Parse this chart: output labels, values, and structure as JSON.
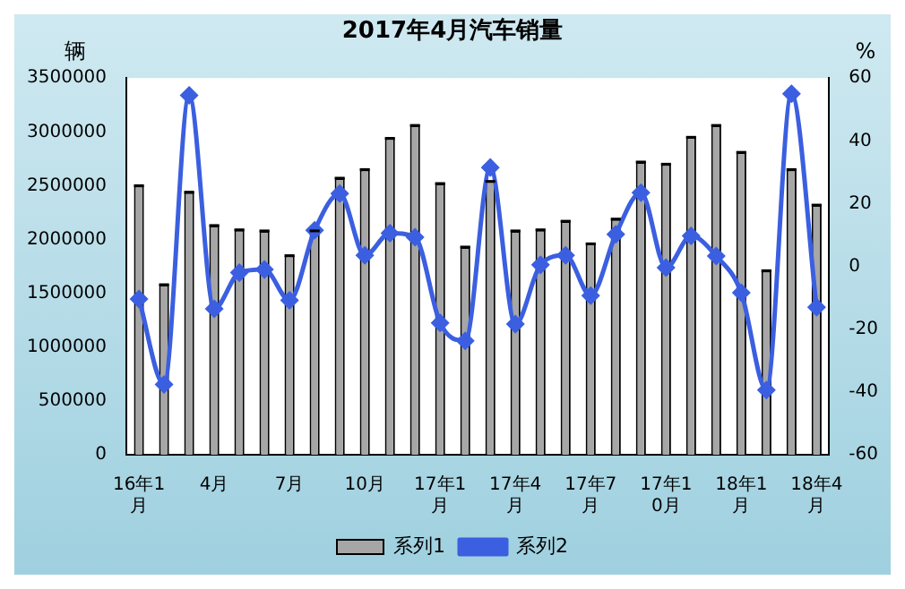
{
  "chart_data": {
    "type": "bar",
    "title": "2017年4月汽车销量",
    "ylabel": "辆",
    "y2label": "%",
    "categories": [
      "16年1月",
      null,
      null,
      "4月",
      null,
      null,
      "7月",
      null,
      null,
      "10月",
      null,
      null,
      "17年1月",
      null,
      null,
      "17年4月",
      null,
      null,
      "17年7月",
      null,
      null,
      "17年10月",
      null,
      null,
      "18年1月",
      null,
      null,
      "18年4月"
    ],
    "series": [
      {
        "name": "系列1",
        "type": "bar",
        "color": "#a6a6a6",
        "values": [
          2500000,
          1580000,
          2440000,
          2130000,
          2090000,
          2080000,
          1850000,
          2080000,
          2570000,
          2650000,
          2940000,
          3060000,
          2520000,
          1930000,
          2540000,
          2080000,
          2090000,
          2170000,
          1960000,
          2190000,
          2720000,
          2700000,
          2950000,
          3060000,
          2810000,
          1710000,
          2650000,
          2320000
        ]
      },
      {
        "name": "系列2",
        "type": "line",
        "axis": "y2",
        "color": "#3b5fe0",
        "values": [
          -10.4,
          -37.6,
          54.5,
          -13.5,
          -2,
          -1,
          -10.8,
          11.5,
          23.2,
          3.5,
          10.6,
          9.3,
          -18,
          -23.7,
          31.5,
          -18.4,
          0.5,
          3.5,
          -9.3,
          10.2,
          23.5,
          -0.4,
          9.7,
          3.3,
          -8.4,
          -39.4,
          55,
          -13
        ]
      }
    ],
    "ylim": [
      0,
      3500000
    ],
    "yticks": [
      0,
      500000,
      1000000,
      1500000,
      2000000,
      2500000,
      3000000,
      3500000
    ],
    "y2lim": [
      -60,
      60
    ],
    "y2ticks": [
      -60,
      -40,
      -20,
      0,
      20,
      40,
      60
    ],
    "grid": false,
    "legend": "bottom",
    "marker": "diamond"
  }
}
